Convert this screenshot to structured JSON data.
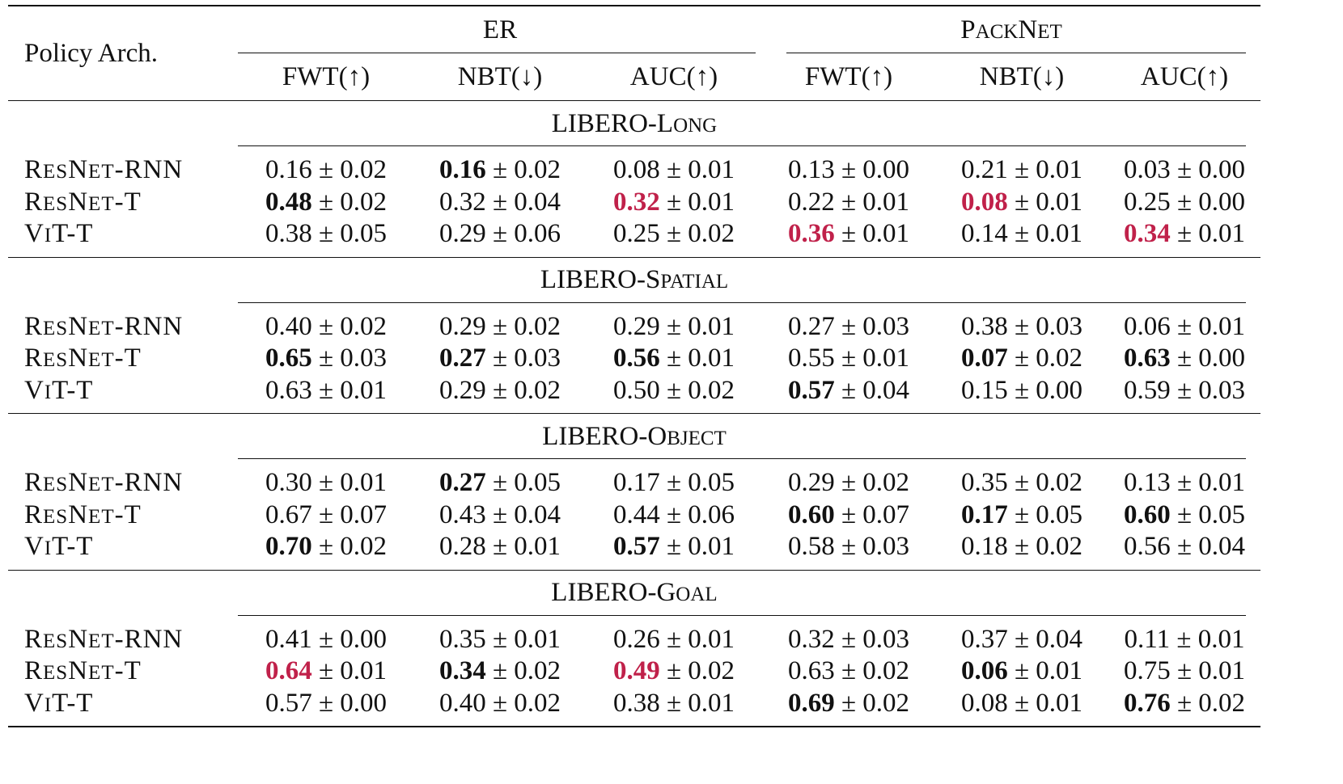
{
  "header": {
    "arch_label": "Policy Arch.",
    "groups": [
      {
        "name_big1": "ER",
        "name_small1": "",
        "name_big2": "",
        "name_small2": ""
      },
      {
        "name_big1": "P",
        "name_small1": "ACK",
        "name_big2": "N",
        "name_small2": "ET"
      }
    ],
    "metrics": [
      "FWT(↑)",
      "NBT(↓)",
      "AUC(↑)",
      "FWT(↑)",
      "NBT(↓)",
      "AUC(↑)"
    ]
  },
  "suites": [
    {
      "prefix": "LIBERO-",
      "name_big": "L",
      "name_small": "ONG",
      "rows": [
        {
          "arch_big1": "R",
          "arch_small1": "ES",
          "arch_big2": "N",
          "arch_small2": "ET",
          "arch_rest": "-RNN",
          "cells": [
            {
              "mean": "0.16",
              "std": "± 0.02",
              "style": "none"
            },
            {
              "mean": "0.16",
              "std": "± 0.02",
              "style": "bold"
            },
            {
              "mean": "0.08",
              "std": "± 0.01",
              "style": "none"
            },
            {
              "mean": "0.13",
              "std": "± 0.00",
              "style": "none"
            },
            {
              "mean": "0.21",
              "std": "± 0.01",
              "style": "none"
            },
            {
              "mean": "0.03",
              "std": "± 0.00",
              "style": "none"
            }
          ]
        },
        {
          "arch_big1": "R",
          "arch_small1": "ES",
          "arch_big2": "N",
          "arch_small2": "ET",
          "arch_rest": "-T",
          "cells": [
            {
              "mean": "0.48",
              "std": "± 0.02",
              "style": "bold"
            },
            {
              "mean": "0.32",
              "std": "± 0.04",
              "style": "none"
            },
            {
              "mean": "0.32",
              "std": "± 0.01",
              "style": "red"
            },
            {
              "mean": "0.22",
              "std": "± 0.01",
              "style": "none"
            },
            {
              "mean": "0.08",
              "std": "± 0.01",
              "style": "red"
            },
            {
              "mean": "0.25",
              "std": "± 0.00",
              "style": "none"
            }
          ]
        },
        {
          "arch_big1": "V",
          "arch_small1": "I",
          "arch_big2": "T",
          "arch_small2": "",
          "arch_rest": "-T",
          "cells": [
            {
              "mean": "0.38",
              "std": "± 0.05",
              "style": "none"
            },
            {
              "mean": "0.29",
              "std": "± 0.06",
              "style": "none"
            },
            {
              "mean": "0.25",
              "std": "± 0.02",
              "style": "none"
            },
            {
              "mean": "0.36",
              "std": "± 0.01",
              "style": "red"
            },
            {
              "mean": "0.14",
              "std": "± 0.01",
              "style": "none"
            },
            {
              "mean": "0.34",
              "std": "± 0.01",
              "style": "red"
            }
          ]
        }
      ]
    },
    {
      "prefix": "LIBERO-",
      "name_big": "S",
      "name_small": "PATIAL",
      "rows": [
        {
          "arch_big1": "R",
          "arch_small1": "ES",
          "arch_big2": "N",
          "arch_small2": "ET",
          "arch_rest": "-RNN",
          "cells": [
            {
              "mean": "0.40",
              "std": "± 0.02",
              "style": "none"
            },
            {
              "mean": "0.29",
              "std": "± 0.02",
              "style": "none"
            },
            {
              "mean": "0.29",
              "std": "± 0.01",
              "style": "none"
            },
            {
              "mean": "0.27",
              "std": "± 0.03",
              "style": "none"
            },
            {
              "mean": "0.38",
              "std": "± 0.03",
              "style": "none"
            },
            {
              "mean": "0.06",
              "std": "± 0.01",
              "style": "none"
            }
          ]
        },
        {
          "arch_big1": "R",
          "arch_small1": "ES",
          "arch_big2": "N",
          "arch_small2": "ET",
          "arch_rest": "-T",
          "cells": [
            {
              "mean": "0.65",
              "std": "± 0.03",
              "style": "bold"
            },
            {
              "mean": "0.27",
              "std": "± 0.03",
              "style": "bold"
            },
            {
              "mean": "0.56",
              "std": "± 0.01",
              "style": "bold"
            },
            {
              "mean": "0.55",
              "std": "± 0.01",
              "style": "none"
            },
            {
              "mean": "0.07",
              "std": "± 0.02",
              "style": "bold"
            },
            {
              "mean": "0.63",
              "std": "± 0.00",
              "style": "bold"
            }
          ]
        },
        {
          "arch_big1": "V",
          "arch_small1": "I",
          "arch_big2": "T",
          "arch_small2": "",
          "arch_rest": "-T",
          "cells": [
            {
              "mean": "0.63",
              "std": "± 0.01",
              "style": "none"
            },
            {
              "mean": "0.29",
              "std": "± 0.02",
              "style": "none"
            },
            {
              "mean": "0.50",
              "std": "± 0.02",
              "style": "none"
            },
            {
              "mean": "0.57",
              "std": "± 0.04",
              "style": "bold"
            },
            {
              "mean": "0.15",
              "std": "± 0.00",
              "style": "none"
            },
            {
              "mean": "0.59",
              "std": "± 0.03",
              "style": "none"
            }
          ]
        }
      ]
    },
    {
      "prefix": "LIBERO-",
      "name_big": "O",
      "name_small": "BJECT",
      "rows": [
        {
          "arch_big1": "R",
          "arch_small1": "ES",
          "arch_big2": "N",
          "arch_small2": "ET",
          "arch_rest": "-RNN",
          "cells": [
            {
              "mean": "0.30",
              "std": "± 0.01",
              "style": "none"
            },
            {
              "mean": "0.27",
              "std": "± 0.05",
              "style": "bold"
            },
            {
              "mean": "0.17",
              "std": "± 0.05",
              "style": "none"
            },
            {
              "mean": "0.29",
              "std": "± 0.02",
              "style": "none"
            },
            {
              "mean": "0.35",
              "std": "± 0.02",
              "style": "none"
            },
            {
              "mean": "0.13",
              "std": "± 0.01",
              "style": "none"
            }
          ]
        },
        {
          "arch_big1": "R",
          "arch_small1": "ES",
          "arch_big2": "N",
          "arch_small2": "ET",
          "arch_rest": "-T",
          "cells": [
            {
              "mean": "0.67",
              "std": "± 0.07",
              "style": "none"
            },
            {
              "mean": "0.43",
              "std": "± 0.04",
              "style": "none"
            },
            {
              "mean": "0.44",
              "std": "± 0.06",
              "style": "none"
            },
            {
              "mean": "0.60",
              "std": "± 0.07",
              "style": "bold"
            },
            {
              "mean": "0.17",
              "std": "± 0.05",
              "style": "bold"
            },
            {
              "mean": "0.60",
              "std": "± 0.05",
              "style": "bold"
            }
          ]
        },
        {
          "arch_big1": "V",
          "arch_small1": "I",
          "arch_big2": "T",
          "arch_small2": "",
          "arch_rest": "-T",
          "cells": [
            {
              "mean": "0.70",
              "std": "± 0.02",
              "style": "bold"
            },
            {
              "mean": "0.28",
              "std": "± 0.01",
              "style": "none"
            },
            {
              "mean": "0.57",
              "std": "± 0.01",
              "style": "bold"
            },
            {
              "mean": "0.58",
              "std": "± 0.03",
              "style": "none"
            },
            {
              "mean": "0.18",
              "std": "± 0.02",
              "style": "none"
            },
            {
              "mean": "0.56",
              "std": "± 0.04",
              "style": "none"
            }
          ]
        }
      ]
    },
    {
      "prefix": "LIBERO-",
      "name_big": "G",
      "name_small": "OAL",
      "rows": [
        {
          "arch_big1": "R",
          "arch_small1": "ES",
          "arch_big2": "N",
          "arch_small2": "ET",
          "arch_rest": "-RNN",
          "cells": [
            {
              "mean": "0.41",
              "std": "± 0.00",
              "style": "none"
            },
            {
              "mean": "0.35",
              "std": "± 0.01",
              "style": "none"
            },
            {
              "mean": "0.26",
              "std": "± 0.01",
              "style": "none"
            },
            {
              "mean": "0.32",
              "std": "± 0.03",
              "style": "none"
            },
            {
              "mean": "0.37",
              "std": "± 0.04",
              "style": "none"
            },
            {
              "mean": "0.11",
              "std": "± 0.01",
              "style": "none"
            }
          ]
        },
        {
          "arch_big1": "R",
          "arch_small1": "ES",
          "arch_big2": "N",
          "arch_small2": "ET",
          "arch_rest": "-T",
          "cells": [
            {
              "mean": "0.64",
              "std": "± 0.01",
              "style": "red"
            },
            {
              "mean": "0.34",
              "std": "± 0.02",
              "style": "bold"
            },
            {
              "mean": "0.49",
              "std": "± 0.02",
              "style": "red"
            },
            {
              "mean": "0.63",
              "std": "± 0.02",
              "style": "none"
            },
            {
              "mean": "0.06",
              "std": "± 0.01",
              "style": "bold"
            },
            {
              "mean": "0.75",
              "std": "± 0.01",
              "style": "none"
            }
          ]
        },
        {
          "arch_big1": "V",
          "arch_small1": "I",
          "arch_big2": "T",
          "arch_small2": "",
          "arch_rest": "-T",
          "cells": [
            {
              "mean": "0.57",
              "std": "± 0.00",
              "style": "none"
            },
            {
              "mean": "0.40",
              "std": "± 0.02",
              "style": "none"
            },
            {
              "mean": "0.38",
              "std": "± 0.01",
              "style": "none"
            },
            {
              "mean": "0.69",
              "std": "± 0.02",
              "style": "bold"
            },
            {
              "mean": "0.08",
              "std": "± 0.01",
              "style": "none"
            },
            {
              "mean": "0.76",
              "std": "± 0.02",
              "style": "bold"
            }
          ]
        }
      ]
    }
  ],
  "colors": {
    "highlight_red": "#c0214a",
    "rule": "#111111",
    "text": "#111111"
  }
}
